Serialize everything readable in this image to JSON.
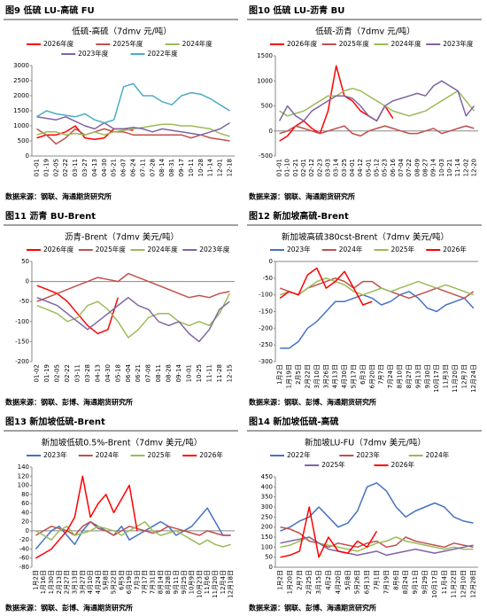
{
  "chart_data": [
    {
      "type": "line",
      "caption": "图9  低硫 LU-高硫 FU",
      "title": "低硫-高硫（7dmv 元/吨）",
      "source": "数据来源：钢联、海通期货研究所",
      "categories": [
        "01-01",
        "01-19",
        "02-05",
        "02-22",
        "03-11",
        "03-27",
        "04-13",
        "04-30",
        "05-21",
        "06-07",
        "06-24",
        "07-11",
        "07-28",
        "08-14",
        "08-31",
        "09-17",
        "10-11",
        "10-28",
        "11-14",
        "12-01",
        "12-18"
      ],
      "ylim": [
        0,
        3000
      ],
      "yticks": [
        0,
        500,
        1000,
        1500,
        2000,
        2500,
        3000
      ],
      "series": [
        {
          "name": "2026年度",
          "color": "#ff0000",
          "values": [
            600,
            700,
            700,
            800,
            1000,
            600,
            550,
            600,
            900,
            900,
            850,
            null,
            null,
            null,
            null,
            null,
            null,
            null,
            null,
            null,
            null
          ]
        },
        {
          "name": "2025年度",
          "color": "#c0504d",
          "values": [
            900,
            700,
            400,
            600,
            900,
            700,
            800,
            900,
            800,
            800,
            700,
            700,
            700,
            700,
            700,
            700,
            600,
            700,
            600,
            550,
            500
          ]
        },
        {
          "name": "2024年度",
          "color": "#9bbb59",
          "values": [
            700,
            800,
            800,
            700,
            750,
            700,
            800,
            700,
            800,
            850,
            900,
            950,
            1000,
            1050,
            1050,
            1000,
            1000,
            950,
            900,
            750,
            650
          ]
        },
        {
          "name": "2023年度",
          "color": "#8064a2",
          "values": [
            1300,
            1250,
            1200,
            1300,
            1150,
            1000,
            900,
            1100,
            900,
            900,
            950,
            900,
            800,
            900,
            850,
            800,
            750,
            700,
            800,
            900,
            1100
          ]
        },
        {
          "name": "2022年度",
          "color": "#4bacc6",
          "values": [
            1300,
            1500,
            1400,
            1350,
            1300,
            1400,
            1200,
            1100,
            1200,
            2300,
            2400,
            2000,
            2000,
            1800,
            1700,
            2000,
            2100,
            2050,
            1900,
            1700,
            1500
          ]
        }
      ]
    },
    {
      "type": "line",
      "caption": "图10  低硫 LU-沥青 BU",
      "title": "低硫-沥青（7dmv 元/吨）",
      "source": "数据来源：钢联、海通期货研究所",
      "categories": [
        "01-01",
        "01-10",
        "01-21",
        "02-01",
        "02-12",
        "02-23",
        "03-03",
        "03-14",
        "03-25",
        "04-01",
        "04-12",
        "05-01",
        "05-12",
        "05-23",
        "06-16",
        "07-04",
        "07-22",
        "08-09",
        "08-27",
        "09-14",
        "10-03",
        "10-21",
        "11-14",
        "12-02",
        "12-20"
      ],
      "ylim": [
        -500,
        1500
      ],
      "yticks": [
        -500,
        0,
        500,
        1000,
        1500
      ],
      "series": [
        {
          "name": "2026年度",
          "color": "#ff0000",
          "values": [
            -200,
            -100,
            100,
            200,
            50,
            -50,
            400,
            1300,
            700,
            600,
            400,
            300,
            200,
            500,
            250,
            null,
            null,
            null,
            null,
            null,
            null,
            null,
            null,
            null,
            null
          ]
        },
        {
          "name": "2025年度",
          "color": "#c0504d",
          "values": [
            -50,
            0,
            100,
            50,
            0,
            -50,
            0,
            50,
            100,
            -50,
            -100,
            0,
            50,
            100,
            50,
            0,
            -50,
            -50,
            0,
            50,
            -50,
            0,
            50,
            100,
            50
          ]
        },
        {
          "name": "2024年度",
          "color": "#9bbb59",
          "values": [
            400,
            300,
            350,
            400,
            500,
            600,
            700,
            700,
            800,
            850,
            800,
            700,
            600,
            500,
            400,
            350,
            300,
            350,
            400,
            500,
            600,
            700,
            800,
            600,
            400
          ]
        },
        {
          "name": "2023年度",
          "color": "#8064a2",
          "values": [
            200,
            500,
            300,
            200,
            400,
            500,
            600,
            700,
            700,
            650,
            500,
            300,
            200,
            500,
            600,
            650,
            700,
            750,
            700,
            900,
            1000,
            900,
            800,
            300,
            500
          ]
        }
      ]
    },
    {
      "type": "line",
      "caption": "图11  沥青 BU-Brent",
      "title": "沥青-Brent（7dmv 美元/吨）",
      "source": "数据来源：钢联、彭博、海通期货研究所",
      "categories": [
        "01-02",
        "01-19",
        "02-05",
        "02-22",
        "03-11",
        "03-28",
        "04-13",
        "04-30",
        "05-18",
        "06-04",
        "06-21",
        "07-08",
        "08-11",
        "08-28",
        "09-14",
        "10-01",
        "10-25",
        "11-11",
        "11-28",
        "12-15"
      ],
      "ylim": [
        -200,
        50
      ],
      "yticks": [
        -200,
        -150,
        -100,
        -50,
        0,
        50
      ],
      "series": [
        {
          "name": "2026年度",
          "color": "#ff0000",
          "values": [
            -10,
            -20,
            -30,
            -50,
            -80,
            -110,
            -130,
            -120,
            -40,
            null,
            null,
            null,
            null,
            null,
            null,
            null,
            null,
            null,
            null,
            null
          ]
        },
        {
          "name": "2025年度",
          "color": "#c0504d",
          "values": [
            -50,
            -40,
            -30,
            -20,
            -10,
            0,
            10,
            5,
            0,
            20,
            10,
            0,
            -10,
            -20,
            -30,
            -40,
            -35,
            -40,
            -30,
            -25
          ]
        },
        {
          "name": "2024年度",
          "color": "#9bbb59",
          "values": [
            -60,
            -70,
            -80,
            -100,
            -90,
            -60,
            -50,
            -70,
            -100,
            -140,
            -120,
            -90,
            -80,
            -80,
            -100,
            -110,
            -100,
            -110,
            -80,
            -30
          ]
        },
        {
          "name": "2023年度",
          "color": "#8064a2",
          "values": [
            -40,
            -50,
            -60,
            -80,
            -100,
            -120,
            -100,
            -80,
            -60,
            -40,
            -60,
            -70,
            -100,
            -110,
            -100,
            -130,
            -150,
            -120,
            -70,
            -50
          ]
        }
      ]
    },
    {
      "type": "line",
      "caption": "图12  新加坡高硫-Brent",
      "title": "新加坡高硫380cst-Brent（7dmv 美元/吨）",
      "source": "数据来源：钢联、彭博、海通期货研究所",
      "categories": [
        "1月2日",
        "1月19日",
        "2月5日",
        "2月22日",
        "3月10日",
        "3月26日",
        "4月13日",
        "4月30日",
        "5月17日",
        "6月3日",
        "6月20日",
        "7月7日",
        "7月24日",
        "8月10日",
        "8月27日",
        "9月13日",
        "9月30日",
        "10月17日",
        "11月3日",
        "11月20日",
        "12月7日",
        "12月24日"
      ],
      "ylim": [
        -300,
        0
      ],
      "yticks": [
        -300,
        -250,
        -200,
        -150,
        -100,
        -50,
        0
      ],
      "series": [
        {
          "name": "2023年",
          "color": "#4472c4",
          "values": [
            -260,
            -260,
            -240,
            -200,
            -180,
            -150,
            -120,
            -120,
            -110,
            -100,
            -110,
            -130,
            -120,
            -100,
            -90,
            -110,
            -140,
            -150,
            -130,
            -120,
            -110,
            -140
          ]
        },
        {
          "name": "2024年",
          "color": "#c0504d",
          "values": [
            -80,
            -90,
            -100,
            -80,
            -70,
            -60,
            -50,
            -60,
            -80,
            -60,
            -60,
            -80,
            -90,
            -100,
            -110,
            -100,
            -90,
            -80,
            -90,
            -100,
            -110,
            -90
          ]
        },
        {
          "name": "2025年",
          "color": "#9bbb59",
          "values": [
            -100,
            -90,
            -100,
            -80,
            -60,
            -50,
            -60,
            -70,
            -90,
            -100,
            -90,
            -80,
            -90,
            -80,
            -70,
            -60,
            -70,
            -80,
            -70,
            -80,
            -90,
            -100
          ]
        },
        {
          "name": "2026年",
          "color": "#ff0000",
          "values": [
            -110,
            -90,
            -100,
            -40,
            -20,
            -80,
            -60,
            -30,
            -80,
            -130,
            -120,
            null,
            null,
            null,
            null,
            null,
            null,
            null,
            null,
            null,
            null,
            null
          ]
        }
      ]
    },
    {
      "type": "line",
      "caption": "图13  新加坡低硫-Brent",
      "title": "新加坡低硫0.5%-Brent（7dmv 美元/吨）",
      "source": "数据来源：钢联、彭博、海通期货研究所",
      "categories": [
        "1月2日",
        "1月16日",
        "1月30日",
        "2月13日",
        "2月27日",
        "3月13日",
        "3月27日",
        "4月10日",
        "4月24日",
        "5月8日",
        "5月22日",
        "6月5日",
        "6月19日",
        "7月3日",
        "7月17日",
        "7月31日",
        "8月14日",
        "8月28日",
        "9月11日",
        "9月25日",
        "10月9日",
        "10月23日",
        "11月6日",
        "11月20日",
        "12月4日",
        "12月18日"
      ],
      "ylim": [
        -80,
        140
      ],
      "yticks": [
        -80,
        -60,
        -40,
        -20,
        0,
        20,
        40,
        60,
        80,
        100,
        120,
        140
      ],
      "series": [
        {
          "name": "2023年",
          "color": "#4472c4",
          "values": [
            -40,
            -20,
            0,
            10,
            -10,
            -30,
            0,
            20,
            10,
            0,
            -10,
            10,
            -20,
            -10,
            0,
            10,
            20,
            10,
            -10,
            0,
            10,
            30,
            50,
            20,
            -10,
            -10
          ]
        },
        {
          "name": "2024年",
          "color": "#c0504d",
          "values": [
            -10,
            0,
            10,
            5,
            0,
            -10,
            10,
            20,
            5,
            0,
            -10,
            0,
            10,
            5,
            0,
            -5,
            0,
            10,
            5,
            0,
            -5,
            -10,
            0,
            -5,
            -10,
            -10
          ]
        },
        {
          "name": "2025年",
          "color": "#9bbb59",
          "values": [
            0,
            -10,
            -20,
            0,
            10,
            -10,
            -5,
            0,
            10,
            5,
            0,
            -10,
            0,
            10,
            20,
            0,
            -10,
            -5,
            0,
            -10,
            -20,
            -30,
            -20,
            -30,
            -35,
            -30
          ]
        },
        {
          "name": "2026年",
          "color": "#ff0000",
          "values": [
            -60,
            -50,
            -40,
            -20,
            0,
            30,
            120,
            30,
            60,
            80,
            40,
            70,
            100,
            0,
            null,
            null,
            null,
            null,
            null,
            null,
            null,
            null,
            null,
            null,
            null,
            null
          ]
        }
      ]
    },
    {
      "type": "line",
      "caption": "图14  新加坡低硫-高硫",
      "title": "新加坡LU-FU（7dmv 美元/吨）",
      "source": "数据来源：钢联、彭博、海通期货研究所",
      "categories": [
        "1月2日",
        "1月20日",
        "2月7日",
        "2月25日",
        "3月15日",
        "4月2日",
        "4月20日",
        "5月8日",
        "5月26日",
        "6月13日",
        "7月1日",
        "7月19日",
        "8月6日",
        "8月24日",
        "9月11日",
        "9月29日",
        "10月17日",
        "11月4日",
        "11月22日",
        "12月10日",
        "12月28日"
      ],
      "ylim": [
        0,
        450
      ],
      "yticks": [
        0,
        50,
        100,
        150,
        200,
        250,
        300,
        350,
        400,
        450
      ],
      "series": [
        {
          "name": "2022年",
          "color": "#4472c4",
          "values": [
            180,
            200,
            230,
            250,
            300,
            250,
            200,
            220,
            280,
            400,
            420,
            380,
            300,
            250,
            280,
            300,
            320,
            300,
            250,
            230,
            220
          ]
        },
        {
          "name": "2023年",
          "color": "#c0504d",
          "values": [
            200,
            190,
            170,
            130,
            120,
            100,
            120,
            110,
            100,
            120,
            130,
            100,
            110,
            150,
            130,
            120,
            110,
            100,
            120,
            110,
            100
          ]
        },
        {
          "name": "2024年",
          "color": "#9bbb59",
          "values": [
            100,
            110,
            130,
            150,
            120,
            110,
            100,
            90,
            80,
            100,
            120,
            130,
            150,
            130,
            120,
            110,
            100,
            90,
            100,
            90,
            90
          ]
        },
        {
          "name": "2025年",
          "color": "#8064a2",
          "values": [
            120,
            130,
            140,
            150,
            120,
            90,
            80,
            70,
            60,
            70,
            80,
            60,
            70,
            80,
            90,
            80,
            70,
            80,
            90,
            100,
            110
          ]
        },
        {
          "name": "2026年",
          "color": "#ff0000",
          "values": [
            50,
            60,
            80,
            300,
            50,
            150,
            80,
            70,
            130,
            100,
            180,
            null,
            null,
            null,
            null,
            null,
            null,
            null,
            null,
            null,
            null
          ]
        }
      ]
    }
  ]
}
